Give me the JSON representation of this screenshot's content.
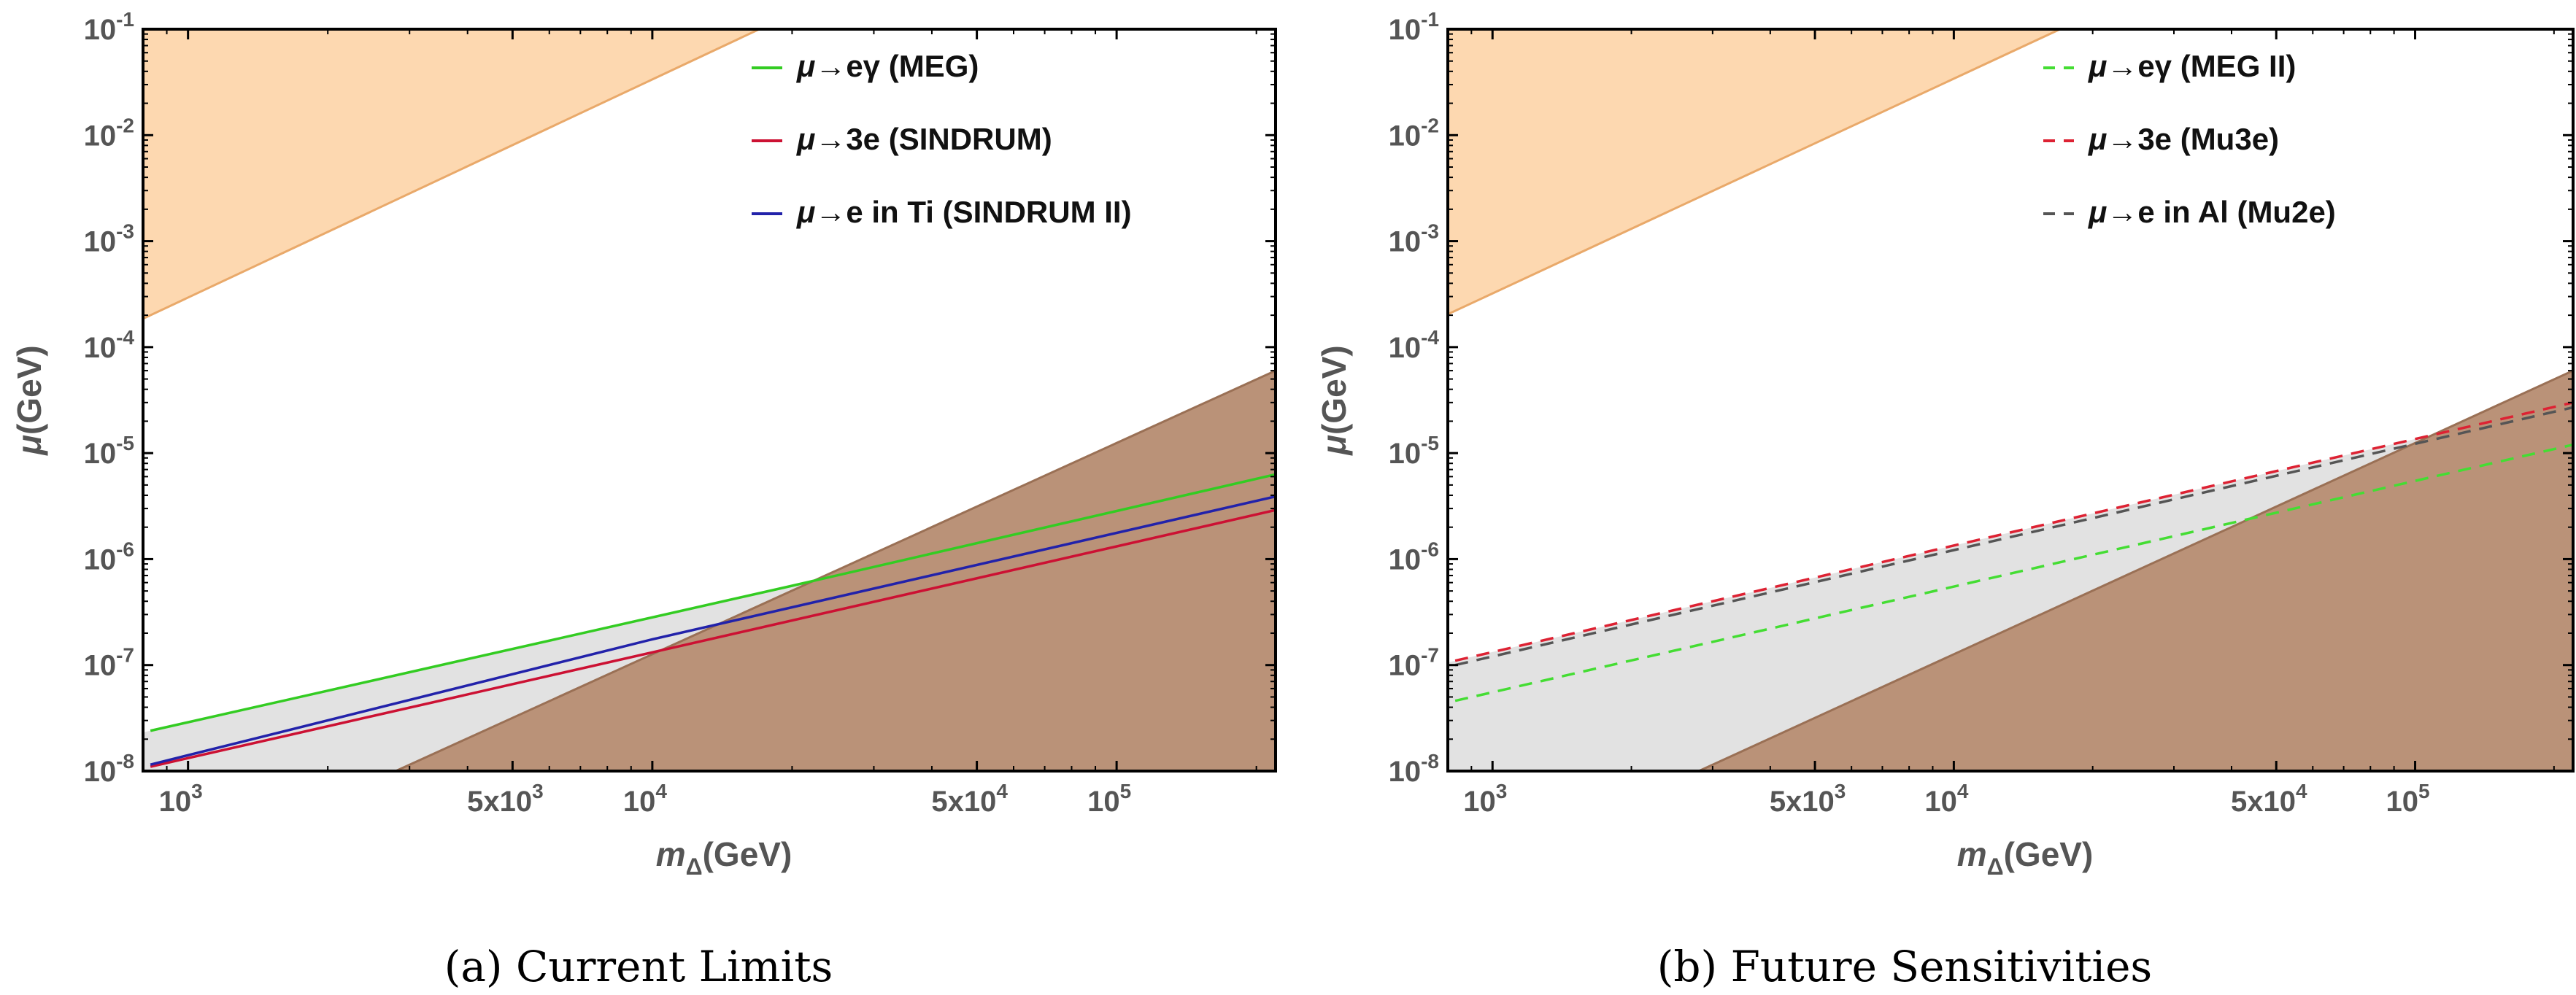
{
  "chart_data": [
    {
      "type": "line",
      "caption": "(a) Current Limits",
      "xlabel": "m_Δ(GeV)",
      "ylabel": "μ(GeV)",
      "xscale": "log",
      "yscale": "log",
      "xlim": [
        800,
        220000
      ],
      "ylim": [
        1e-08,
        0.1
      ],
      "xticks": [
        {
          "v": 1000,
          "b": "10",
          "e": "3"
        },
        {
          "v": 5000,
          "b": "5x10",
          "e": "3"
        },
        {
          "v": 10000,
          "b": "10",
          "e": "4"
        },
        {
          "v": 50000,
          "b": "5x10",
          "e": "4"
        },
        {
          "v": 100000,
          "b": "10",
          "e": "5"
        }
      ],
      "yticks": [
        {
          "v": 1e-08,
          "b": "10",
          "e": "-8"
        },
        {
          "v": 1e-07,
          "b": "10",
          "e": "-7"
        },
        {
          "v": 1e-06,
          "b": "10",
          "e": "-6"
        },
        {
          "v": 1e-05,
          "b": "10",
          "e": "-5"
        },
        {
          "v": 0.0001,
          "b": "10",
          "e": "-4"
        },
        {
          "v": 0.001,
          "b": "10",
          "e": "-3"
        },
        {
          "v": 0.01,
          "b": "10",
          "e": "-2"
        },
        {
          "v": 0.1,
          "b": "10",
          "e": "-1"
        }
      ],
      "legend_position": "top-right",
      "legend_style": "solid",
      "series": [
        {
          "name": "μ→eγ (MEG)",
          "color": "#33cc22",
          "x": [
            830,
            20000,
            220000
          ],
          "y": [
            2.4e-08,
            5.6e-07,
            6.3e-06
          ]
        },
        {
          "name": "μ→3e (SINDRUM)",
          "color": "#cc1133",
          "x": [
            830,
            11000,
            220000
          ],
          "y": [
            1.1e-08,
            1.45e-07,
            2.9e-06
          ]
        },
        {
          "name": "μ→e in Ti (SINDRUM II)",
          "color": "#2222aa",
          "x": [
            830,
            10000,
            220000
          ],
          "y": [
            1.15e-08,
            1.75e-07,
            3.9e-06
          ]
        }
      ],
      "regions": [
        {
          "kind": "orange",
          "color": "#fdd8b0",
          "edge": "#e9a96a",
          "x": [
            830,
            17000
          ],
          "y": [
            0.0002,
            0.1
          ]
        },
        {
          "kind": "brown",
          "color": "#ba9278",
          "edge": "#9a7055",
          "x": [
            2800,
            220000
          ],
          "y": [
            1e-08,
            6e-05
          ]
        }
      ]
    },
    {
      "type": "line",
      "caption": "(b) Future Sensitivities",
      "xlabel": "m_Δ(GeV)",
      "ylabel": "μ(GeV)",
      "xscale": "log",
      "yscale": "log",
      "xlim": [
        800,
        220000
      ],
      "ylim": [
        1e-08,
        0.1
      ],
      "xticks": [
        {
          "v": 1000,
          "b": "10",
          "e": "3"
        },
        {
          "v": 5000,
          "b": "5x10",
          "e": "3"
        },
        {
          "v": 10000,
          "b": "10",
          "e": "4"
        },
        {
          "v": 50000,
          "b": "5x10",
          "e": "4"
        },
        {
          "v": 100000,
          "b": "10",
          "e": "5"
        }
      ],
      "yticks": [
        {
          "v": 1e-08,
          "b": "10",
          "e": "-8"
        },
        {
          "v": 1e-07,
          "b": "10",
          "e": "-7"
        },
        {
          "v": 1e-06,
          "b": "10",
          "e": "-6"
        },
        {
          "v": 1e-05,
          "b": "10",
          "e": "-5"
        },
        {
          "v": 0.0001,
          "b": "10",
          "e": "-4"
        },
        {
          "v": 0.001,
          "b": "10",
          "e": "-3"
        },
        {
          "v": 0.01,
          "b": "10",
          "e": "-2"
        },
        {
          "v": 0.1,
          "b": "10",
          "e": "-1"
        }
      ],
      "legend_position": "top-right",
      "legend_style": "dashed",
      "series": [
        {
          "name": "μ→eγ (MEG II)",
          "color": "#44dd33",
          "x": [
            830,
            220000
          ],
          "y": [
            4.6e-08,
            1.2e-05
          ]
        },
        {
          "name": "μ→3e (Mu3e)",
          "color": "#dd2233",
          "x": [
            830,
            220000
          ],
          "y": [
            1.1e-07,
            3e-05
          ]
        },
        {
          "name": "μ→e in Al (Mu2e)",
          "color": "#555555",
          "x": [
            830,
            220000
          ],
          "y": [
            1e-07,
            2.7e-05
          ]
        }
      ],
      "regions": [
        {
          "kind": "orange",
          "color": "#fdd8b0",
          "edge": "#e9a96a",
          "x": [
            830,
            17000
          ],
          "y": [
            0.00022,
            0.1
          ]
        },
        {
          "kind": "brown",
          "color": "#ba9278",
          "edge": "#9a7055",
          "x": [
            2800,
            220000
          ],
          "y": [
            1e-08,
            6e-05
          ]
        }
      ]
    }
  ]
}
